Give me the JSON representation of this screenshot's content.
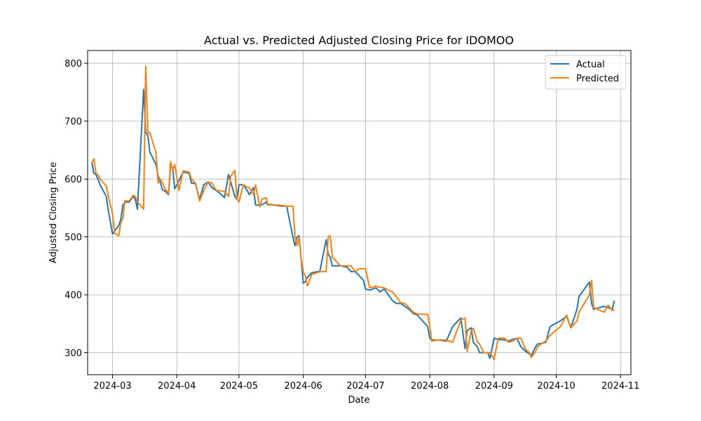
{
  "chart_data": {
    "type": "line",
    "title": "Actual vs. Predicted Adjusted Closing Price for IDOMOO",
    "xlabel": "Date",
    "ylabel": "Adjusted Closing Price",
    "grid": true,
    "legend_position": "top-right",
    "xlim": [
      "2024-02-18",
      "2024-11-06"
    ],
    "ylim": [
      262,
      822
    ],
    "x_ticks": [
      "2024-03-01",
      "2024-04-01",
      "2024-05-01",
      "2024-06-01",
      "2024-07-01",
      "2024-08-01",
      "2024-09-01",
      "2024-10-01",
      "2024-11-01"
    ],
    "x_tick_labels": [
      "2024-03",
      "2024-04",
      "2024-05",
      "2024-06",
      "2024-07",
      "2024-08",
      "2024-09",
      "2024-10",
      "2024-11"
    ],
    "y_ticks": [
      300,
      400,
      500,
      600,
      700,
      800
    ],
    "y_tick_labels": [
      "300",
      "400",
      "500",
      "600",
      "700",
      "800"
    ],
    "series": [
      {
        "name": "Actual",
        "color": "#1f77b4",
        "points": [
          [
            "2024-02-20",
            630
          ],
          [
            "2024-02-21",
            610
          ],
          [
            "2024-02-22",
            608
          ],
          [
            "2024-02-23",
            600
          ],
          [
            "2024-02-24",
            590
          ],
          [
            "2024-02-27",
            570
          ],
          [
            "2024-02-28",
            545
          ],
          [
            "2024-03-01",
            505
          ],
          [
            "2024-03-02",
            510
          ],
          [
            "2024-03-04",
            520
          ],
          [
            "2024-03-05",
            530
          ],
          [
            "2024-03-06",
            555
          ],
          [
            "2024-03-07",
            560
          ],
          [
            "2024-03-08",
            560
          ],
          [
            "2024-03-09",
            560
          ],
          [
            "2024-03-11",
            570
          ],
          [
            "2024-03-12",
            565
          ],
          [
            "2024-03-13",
            548
          ],
          [
            "2024-03-16",
            755
          ],
          [
            "2024-03-17",
            680
          ],
          [
            "2024-03-18",
            676
          ],
          [
            "2024-03-19",
            647
          ],
          [
            "2024-03-22",
            625
          ],
          [
            "2024-03-23",
            605
          ],
          [
            "2024-03-24",
            595
          ],
          [
            "2024-03-25",
            582
          ],
          [
            "2024-03-26",
            580
          ],
          [
            "2024-03-27",
            577
          ],
          [
            "2024-03-28",
            573
          ],
          [
            "2024-03-29",
            622
          ],
          [
            "2024-03-30",
            620
          ],
          [
            "2024-03-31",
            583
          ],
          [
            "2024-04-02",
            597
          ],
          [
            "2024-04-04",
            612
          ],
          [
            "2024-04-07",
            610
          ],
          [
            "2024-04-08",
            593
          ],
          [
            "2024-04-10",
            592
          ],
          [
            "2024-04-12",
            565
          ],
          [
            "2024-04-14",
            590
          ],
          [
            "2024-04-16",
            595
          ],
          [
            "2024-04-18",
            585
          ],
          [
            "2024-04-20",
            580
          ],
          [
            "2024-04-22",
            575
          ],
          [
            "2024-04-24",
            568
          ],
          [
            "2024-04-26",
            608
          ],
          [
            "2024-04-27",
            595
          ],
          [
            "2024-04-29",
            570
          ],
          [
            "2024-04-30",
            565
          ],
          [
            "2024-05-01",
            590
          ],
          [
            "2024-05-03",
            590
          ],
          [
            "2024-05-05",
            580
          ],
          [
            "2024-05-06",
            573
          ],
          [
            "2024-05-08",
            585
          ],
          [
            "2024-05-09",
            555
          ],
          [
            "2024-05-11",
            555
          ],
          [
            "2024-05-12",
            555
          ],
          [
            "2024-05-14",
            560
          ],
          [
            "2024-05-15",
            555
          ],
          [
            "2024-05-16",
            556
          ],
          [
            "2024-05-18",
            555
          ],
          [
            "2024-05-20",
            554
          ],
          [
            "2024-05-22",
            553
          ],
          [
            "2024-05-24",
            553
          ],
          [
            "2024-05-27",
            500
          ],
          [
            "2024-05-28",
            485
          ],
          [
            "2024-05-29",
            500
          ],
          [
            "2024-05-30",
            502
          ],
          [
            "2024-05-31",
            460
          ],
          [
            "2024-06-01",
            420
          ],
          [
            "2024-06-02",
            423
          ],
          [
            "2024-06-03",
            430
          ],
          [
            "2024-06-05",
            438
          ],
          [
            "2024-06-09",
            441
          ],
          [
            "2024-06-12",
            495
          ],
          [
            "2024-06-13",
            470
          ],
          [
            "2024-06-14",
            465
          ],
          [
            "2024-06-15",
            450
          ],
          [
            "2024-06-19",
            450
          ],
          [
            "2024-06-22",
            448
          ],
          [
            "2024-06-24",
            440
          ],
          [
            "2024-06-26",
            440
          ],
          [
            "2024-06-28",
            433
          ],
          [
            "2024-06-30",
            425
          ],
          [
            "2024-07-01",
            410
          ],
          [
            "2024-07-03",
            408
          ],
          [
            "2024-07-06",
            412
          ],
          [
            "2024-07-08",
            405
          ],
          [
            "2024-07-10",
            410
          ],
          [
            "2024-07-12",
            400
          ],
          [
            "2024-07-14",
            390
          ],
          [
            "2024-07-16",
            385
          ],
          [
            "2024-07-18",
            385
          ],
          [
            "2024-07-20",
            380
          ],
          [
            "2024-07-22",
            375
          ],
          [
            "2024-07-24",
            368
          ],
          [
            "2024-07-26",
            365
          ],
          [
            "2024-07-31",
            345
          ],
          [
            "2024-08-01",
            325
          ],
          [
            "2024-08-02",
            322
          ],
          [
            "2024-08-05",
            322
          ],
          [
            "2024-08-09",
            320
          ],
          [
            "2024-08-12",
            345
          ],
          [
            "2024-08-16",
            360
          ],
          [
            "2024-08-18",
            307
          ],
          [
            "2024-08-19",
            338
          ],
          [
            "2024-08-21",
            343
          ],
          [
            "2024-08-22",
            318
          ],
          [
            "2024-08-24",
            310
          ],
          [
            "2024-08-25",
            300
          ],
          [
            "2024-08-27",
            300
          ],
          [
            "2024-08-29",
            300
          ],
          [
            "2024-08-30",
            290
          ],
          [
            "2024-09-01",
            325
          ],
          [
            "2024-09-03",
            323
          ],
          [
            "2024-09-06",
            322
          ],
          [
            "2024-09-08",
            320
          ],
          [
            "2024-09-10",
            323
          ],
          [
            "2024-09-12",
            325
          ],
          [
            "2024-09-14",
            310
          ],
          [
            "2024-09-16",
            303
          ],
          [
            "2024-09-18",
            298
          ],
          [
            "2024-09-19",
            295
          ],
          [
            "2024-09-21",
            310
          ],
          [
            "2024-09-22",
            315
          ],
          [
            "2024-09-24",
            316
          ],
          [
            "2024-09-26",
            318
          ],
          [
            "2024-09-28",
            345
          ],
          [
            "2024-10-03",
            355
          ],
          [
            "2024-10-06",
            363
          ],
          [
            "2024-10-08",
            343
          ],
          [
            "2024-10-11",
            375
          ],
          [
            "2024-10-12",
            397
          ],
          [
            "2024-10-17",
            422
          ],
          [
            "2024-10-18",
            385
          ],
          [
            "2024-10-19",
            375
          ],
          [
            "2024-10-24",
            380
          ],
          [
            "2024-10-26",
            378
          ],
          [
            "2024-10-28",
            375
          ],
          [
            "2024-10-29",
            390
          ]
        ]
      },
      {
        "name": "Predicted",
        "color": "#ff7f0e",
        "points": [
          [
            "2024-02-20",
            628
          ],
          [
            "2024-02-21",
            635
          ],
          [
            "2024-02-22",
            610
          ],
          [
            "2024-02-23",
            607
          ],
          [
            "2024-02-24",
            600
          ],
          [
            "2024-02-27",
            588
          ],
          [
            "2024-02-28",
            570
          ],
          [
            "2024-03-01",
            540
          ],
          [
            "2024-03-02",
            506
          ],
          [
            "2024-03-04",
            502
          ],
          [
            "2024-03-05",
            525
          ],
          [
            "2024-03-06",
            532
          ],
          [
            "2024-03-07",
            563
          ],
          [
            "2024-03-08",
            562
          ],
          [
            "2024-03-09",
            562
          ],
          [
            "2024-03-11",
            572
          ],
          [
            "2024-03-12",
            570
          ],
          [
            "2024-03-13",
            560
          ],
          [
            "2024-03-16",
            548
          ],
          [
            "2024-03-17",
            795
          ],
          [
            "2024-03-18",
            680
          ],
          [
            "2024-03-19",
            680
          ],
          [
            "2024-03-22",
            645
          ],
          [
            "2024-03-23",
            593
          ],
          [
            "2024-03-24",
            600
          ],
          [
            "2024-03-25",
            595
          ],
          [
            "2024-03-26",
            585
          ],
          [
            "2024-03-27",
            580
          ],
          [
            "2024-03-28",
            575
          ],
          [
            "2024-03-29",
            630
          ],
          [
            "2024-03-30",
            615
          ],
          [
            "2024-03-31",
            625
          ],
          [
            "2024-04-02",
            580
          ],
          [
            "2024-04-04",
            614
          ],
          [
            "2024-04-07",
            612
          ],
          [
            "2024-04-08",
            600
          ],
          [
            "2024-04-10",
            593
          ],
          [
            "2024-04-12",
            562
          ],
          [
            "2024-04-14",
            580
          ],
          [
            "2024-04-16",
            595
          ],
          [
            "2024-04-18",
            593
          ],
          [
            "2024-04-20",
            580
          ],
          [
            "2024-04-22",
            580
          ],
          [
            "2024-04-24",
            578
          ],
          [
            "2024-04-26",
            570
          ],
          [
            "2024-04-27",
            605
          ],
          [
            "2024-04-29",
            615
          ],
          [
            "2024-04-30",
            566
          ],
          [
            "2024-05-01",
            560
          ],
          [
            "2024-05-03",
            590
          ],
          [
            "2024-05-05",
            586
          ],
          [
            "2024-05-06",
            585
          ],
          [
            "2024-05-08",
            573
          ],
          [
            "2024-05-09",
            590
          ],
          [
            "2024-05-11",
            552
          ],
          [
            "2024-05-12",
            565
          ],
          [
            "2024-05-14",
            568
          ],
          [
            "2024-05-15",
            555
          ],
          [
            "2024-05-16",
            557
          ],
          [
            "2024-05-18",
            555
          ],
          [
            "2024-05-20",
            555
          ],
          [
            "2024-05-22",
            554
          ],
          [
            "2024-05-24",
            553
          ],
          [
            "2024-05-27",
            553
          ],
          [
            "2024-05-28",
            500
          ],
          [
            "2024-05-29",
            485
          ],
          [
            "2024-05-30",
            500
          ],
          [
            "2024-05-31",
            460
          ],
          [
            "2024-06-01",
            440
          ],
          [
            "2024-06-02",
            433
          ],
          [
            "2024-06-03",
            415
          ],
          [
            "2024-06-05",
            435
          ],
          [
            "2024-06-09",
            440
          ],
          [
            "2024-06-12",
            440
          ],
          [
            "2024-06-13",
            500
          ],
          [
            "2024-06-14",
            502
          ],
          [
            "2024-06-15",
            465
          ],
          [
            "2024-06-19",
            450
          ],
          [
            "2024-06-22",
            450
          ],
          [
            "2024-06-24",
            450
          ],
          [
            "2024-06-26",
            440
          ],
          [
            "2024-06-28",
            445
          ],
          [
            "2024-06-30",
            445
          ],
          [
            "2024-07-01",
            445
          ],
          [
            "2024-07-03",
            412
          ],
          [
            "2024-07-06",
            415
          ],
          [
            "2024-07-08",
            413
          ],
          [
            "2024-07-10",
            412
          ],
          [
            "2024-07-12",
            408
          ],
          [
            "2024-07-14",
            405
          ],
          [
            "2024-07-16",
            396
          ],
          [
            "2024-07-18",
            386
          ],
          [
            "2024-07-20",
            385
          ],
          [
            "2024-07-22",
            378
          ],
          [
            "2024-07-24",
            370
          ],
          [
            "2024-07-26",
            367
          ],
          [
            "2024-07-31",
            366
          ],
          [
            "2024-08-01",
            345
          ],
          [
            "2024-08-02",
            320
          ],
          [
            "2024-08-05",
            322
          ],
          [
            "2024-08-09",
            322
          ],
          [
            "2024-08-12",
            318
          ],
          [
            "2024-08-16",
            356
          ],
          [
            "2024-08-18",
            360
          ],
          [
            "2024-08-19",
            302
          ],
          [
            "2024-08-21",
            338
          ],
          [
            "2024-08-22",
            342
          ],
          [
            "2024-08-24",
            318
          ],
          [
            "2024-08-25",
            315
          ],
          [
            "2024-08-27",
            300
          ],
          [
            "2024-08-29",
            300
          ],
          [
            "2024-08-30",
            300
          ],
          [
            "2024-09-01",
            288
          ],
          [
            "2024-09-03",
            325
          ],
          [
            "2024-09-06",
            325
          ],
          [
            "2024-09-08",
            318
          ],
          [
            "2024-09-10",
            320
          ],
          [
            "2024-09-12",
            325
          ],
          [
            "2024-09-14",
            325
          ],
          [
            "2024-09-16",
            307
          ],
          [
            "2024-09-18",
            300
          ],
          [
            "2024-09-19",
            292
          ],
          [
            "2024-09-21",
            302
          ],
          [
            "2024-09-22",
            310
          ],
          [
            "2024-09-24",
            316
          ],
          [
            "2024-09-26",
            320
          ],
          [
            "2024-09-28",
            330
          ],
          [
            "2024-10-03",
            345
          ],
          [
            "2024-10-06",
            365
          ],
          [
            "2024-10-08",
            343
          ],
          [
            "2024-10-11",
            355
          ],
          [
            "2024-10-12",
            370
          ],
          [
            "2024-10-17",
            400
          ],
          [
            "2024-10-18",
            425
          ],
          [
            "2024-10-19",
            378
          ],
          [
            "2024-10-24",
            370
          ],
          [
            "2024-10-26",
            382
          ],
          [
            "2024-10-28",
            373
          ],
          [
            "2024-10-29",
            374
          ]
        ]
      }
    ]
  }
}
